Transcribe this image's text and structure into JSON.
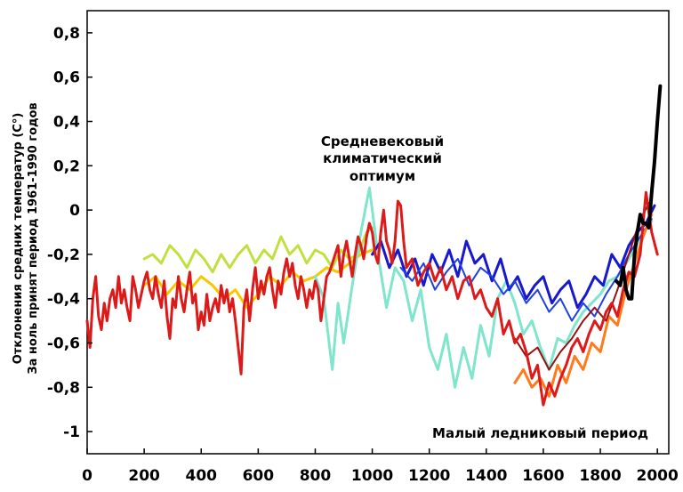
{
  "chart_data": {
    "type": "line",
    "title": "",
    "ylabel_line1": "Отклонения средних температур (C°)",
    "ylabel_line2": "За ноль принят период 1961-1990 годов",
    "xlabel": "",
    "xlim": [
      0,
      2040
    ],
    "ylim": [
      -1.1,
      0.9
    ],
    "x_ticks": [
      0,
      200,
      400,
      600,
      800,
      1000,
      1200,
      1400,
      1600,
      1800,
      2000
    ],
    "x_tick_labels": [
      "0",
      "200",
      "400",
      "600",
      "800",
      "1000",
      "1200",
      "1400",
      "1600",
      "1800",
      "2000"
    ],
    "y_ticks": [
      0.8,
      0.6,
      0.4,
      0.2,
      0,
      -0.2,
      -0.4,
      -0.6,
      -0.8,
      -1
    ],
    "y_tick_labels": [
      "0,8",
      "0,6",
      "0,4",
      "0,2",
      "0",
      "-0,2",
      "-0,4",
      "-0,6",
      "-0,8",
      "-1"
    ],
    "grid": false,
    "annotations": {
      "medieval_line1": "Средневековый",
      "medieval_line2": "климатический",
      "medieval_line3": "оптимум",
      "little_ice_age": "Малый ледниковый период"
    },
    "series": [
      {
        "color": "#c0e040",
        "width": 3,
        "x": [
          200,
          230,
          260,
          290,
          320,
          350,
          380,
          410,
          440,
          470,
          500,
          530,
          560,
          590,
          620,
          650,
          680,
          710,
          740,
          770,
          800,
          830,
          860,
          890,
          920,
          950,
          980,
          1000
        ],
        "y": [
          -0.22,
          -0.2,
          -0.24,
          -0.16,
          -0.2,
          -0.26,
          -0.18,
          -0.22,
          -0.28,
          -0.2,
          -0.26,
          -0.2,
          -0.16,
          -0.24,
          -0.18,
          -0.22,
          -0.12,
          -0.2,
          -0.16,
          -0.24,
          -0.18,
          -0.2,
          -0.26,
          -0.18,
          -0.22,
          -0.2,
          -0.1,
          -0.08
        ]
      },
      {
        "color": "#f5c800",
        "width": 3,
        "x": [
          200,
          240,
          280,
          320,
          360,
          400,
          440,
          480,
          520,
          560,
          600,
          640,
          680,
          720,
          760,
          800,
          840,
          880,
          920,
          960,
          1000
        ],
        "y": [
          -0.34,
          -0.3,
          -0.38,
          -0.32,
          -0.36,
          -0.3,
          -0.34,
          -0.4,
          -0.36,
          -0.44,
          -0.38,
          -0.3,
          -0.34,
          -0.28,
          -0.32,
          -0.3,
          -0.26,
          -0.28,
          -0.24,
          -0.2,
          -0.18
        ]
      },
      {
        "color": "#7fe5cc",
        "width": 3,
        "x": [
          800,
          830,
          860,
          880,
          900,
          930,
          960,
          990,
          1020,
          1050,
          1080,
          1110,
          1140,
          1170,
          1200,
          1230,
          1260,
          1290,
          1320,
          1350,
          1380,
          1410,
          1440,
          1470,
          1500,
          1530,
          1560,
          1590,
          1620,
          1650,
          1680,
          1710,
          1740,
          1770,
          1800,
          1830,
          1860,
          1890,
          1920,
          1950,
          1980
        ],
        "y": [
          -0.3,
          -0.4,
          -0.72,
          -0.42,
          -0.6,
          -0.34,
          -0.1,
          0.1,
          -0.2,
          -0.44,
          -0.26,
          -0.32,
          -0.5,
          -0.36,
          -0.62,
          -0.72,
          -0.56,
          -0.8,
          -0.62,
          -0.76,
          -0.52,
          -0.66,
          -0.4,
          -0.32,
          -0.42,
          -0.56,
          -0.5,
          -0.62,
          -0.72,
          -0.58,
          -0.6,
          -0.52,
          -0.46,
          -0.42,
          -0.38,
          -0.32,
          -0.3,
          -0.24,
          -0.18,
          -0.1,
          -0.05
        ]
      },
      {
        "color": "#1818cc",
        "width": 3,
        "x": [
          1000,
          1030,
          1060,
          1090,
          1120,
          1150,
          1180,
          1210,
          1240,
          1270,
          1300,
          1330,
          1360,
          1390,
          1420,
          1450,
          1480,
          1510,
          1540,
          1570,
          1600,
          1630,
          1660,
          1690,
          1720,
          1750,
          1780,
          1810,
          1840,
          1870,
          1900,
          1930,
          1960,
          1990
        ],
        "y": [
          -0.2,
          -0.14,
          -0.26,
          -0.18,
          -0.3,
          -0.22,
          -0.34,
          -0.2,
          -0.28,
          -0.18,
          -0.3,
          -0.14,
          -0.24,
          -0.2,
          -0.32,
          -0.22,
          -0.36,
          -0.3,
          -0.4,
          -0.34,
          -0.3,
          -0.42,
          -0.36,
          -0.32,
          -0.44,
          -0.38,
          -0.3,
          -0.34,
          -0.2,
          -0.26,
          -0.16,
          -0.1,
          -0.06,
          0.02
        ]
      },
      {
        "color": "#2040e0",
        "width": 2,
        "x": [
          1100,
          1140,
          1180,
          1220,
          1260,
          1300,
          1340,
          1380,
          1420,
          1460,
          1500,
          1540,
          1580,
          1620,
          1660,
          1700,
          1740,
          1780,
          1820,
          1860,
          1900,
          1940,
          1980
        ],
        "y": [
          -0.26,
          -0.32,
          -0.24,
          -0.36,
          -0.28,
          -0.22,
          -0.34,
          -0.26,
          -0.3,
          -0.38,
          -0.32,
          -0.42,
          -0.36,
          -0.46,
          -0.4,
          -0.5,
          -0.42,
          -0.48,
          -0.38,
          -0.3,
          -0.2,
          -0.12,
          -0.04
        ]
      },
      {
        "color": "#ff7a1a",
        "width": 3,
        "x": [
          1500,
          1530,
          1560,
          1590,
          1620,
          1650,
          1680,
          1710,
          1740,
          1770,
          1800,
          1830,
          1860,
          1890,
          1920,
          1950,
          1980
        ],
        "y": [
          -0.78,
          -0.72,
          -0.8,
          -0.76,
          -0.84,
          -0.7,
          -0.78,
          -0.66,
          -0.72,
          -0.6,
          -0.64,
          -0.48,
          -0.52,
          -0.36,
          -0.24,
          -0.12,
          -0.02
        ]
      },
      {
        "color": "#9a1010",
        "width": 2,
        "x": [
          1500,
          1540,
          1580,
          1620,
          1660,
          1700,
          1740,
          1780,
          1820,
          1860,
          1900,
          1940,
          1980
        ],
        "y": [
          -0.58,
          -0.66,
          -0.62,
          -0.72,
          -0.64,
          -0.58,
          -0.5,
          -0.44,
          -0.5,
          -0.36,
          -0.2,
          -0.04,
          0.05
        ]
      },
      {
        "color": "#dd1a1a",
        "width": 3,
        "x": [
          0,
          10,
          20,
          30,
          40,
          50,
          60,
          70,
          80,
          90,
          100,
          110,
          120,
          130,
          140,
          150,
          160,
          170,
          180,
          190,
          200,
          210,
          220,
          230,
          240,
          250,
          260,
          270,
          280,
          290,
          300,
          310,
          320,
          330,
          340,
          350,
          360,
          370,
          380,
          390,
          400,
          410,
          420,
          430,
          440,
          450,
          460,
          470,
          480,
          490,
          500,
          510,
          520,
          530,
          540,
          550,
          560,
          570,
          580,
          590,
          600,
          610,
          620,
          630,
          640,
          650,
          660,
          670,
          680,
          690,
          700,
          710,
          720,
          730,
          740,
          750,
          760,
          770,
          780,
          790,
          800,
          810,
          820,
          830,
          840,
          850,
          860,
          870,
          880,
          890,
          900,
          910,
          920,
          930,
          940,
          950,
          960,
          970,
          980,
          990,
          1000,
          1010,
          1020,
          1030,
          1040,
          1050,
          1060,
          1070,
          1080,
          1090,
          1100,
          1110,
          1120,
          1140,
          1160,
          1180,
          1200,
          1220,
          1240,
          1260,
          1280,
          1300,
          1320,
          1340,
          1360,
          1380,
          1400,
          1420,
          1440,
          1460,
          1480,
          1500,
          1520,
          1540,
          1560,
          1580,
          1600,
          1620,
          1640,
          1660,
          1680,
          1700,
          1720,
          1740,
          1760,
          1780,
          1800,
          1820,
          1840,
          1860,
          1880,
          1900,
          1920,
          1940,
          1960,
          1980,
          2000
        ],
        "y": [
          -0.5,
          -0.62,
          -0.4,
          -0.3,
          -0.48,
          -0.54,
          -0.42,
          -0.5,
          -0.4,
          -0.36,
          -0.44,
          -0.3,
          -0.42,
          -0.36,
          -0.44,
          -0.5,
          -0.3,
          -0.36,
          -0.44,
          -0.38,
          -0.32,
          -0.28,
          -0.36,
          -0.4,
          -0.3,
          -0.38,
          -0.44,
          -0.32,
          -0.48,
          -0.58,
          -0.4,
          -0.44,
          -0.3,
          -0.4,
          -0.46,
          -0.36,
          -0.28,
          -0.42,
          -0.38,
          -0.54,
          -0.46,
          -0.52,
          -0.38,
          -0.5,
          -0.44,
          -0.4,
          -0.46,
          -0.34,
          -0.42,
          -0.36,
          -0.46,
          -0.4,
          -0.5,
          -0.62,
          -0.74,
          -0.44,
          -0.36,
          -0.5,
          -0.36,
          -0.26,
          -0.4,
          -0.32,
          -0.38,
          -0.3,
          -0.26,
          -0.36,
          -0.44,
          -0.32,
          -0.38,
          -0.28,
          -0.22,
          -0.3,
          -0.24,
          -0.34,
          -0.4,
          -0.3,
          -0.36,
          -0.44,
          -0.36,
          -0.4,
          -0.32,
          -0.36,
          -0.5,
          -0.4,
          -0.3,
          -0.28,
          -0.24,
          -0.2,
          -0.16,
          -0.3,
          -0.2,
          -0.14,
          -0.22,
          -0.3,
          -0.2,
          -0.12,
          -0.16,
          -0.22,
          -0.12,
          -0.06,
          -0.1,
          -0.2,
          -0.24,
          -0.1,
          0.0,
          -0.14,
          -0.18,
          -0.24,
          -0.14,
          0.04,
          0.02,
          -0.14,
          -0.26,
          -0.22,
          -0.34,
          -0.28,
          -0.24,
          -0.32,
          -0.26,
          -0.36,
          -0.3,
          -0.4,
          -0.32,
          -0.3,
          -0.4,
          -0.36,
          -0.44,
          -0.48,
          -0.4,
          -0.56,
          -0.5,
          -0.6,
          -0.56,
          -0.64,
          -0.76,
          -0.7,
          -0.88,
          -0.78,
          -0.84,
          -0.76,
          -0.7,
          -0.62,
          -0.58,
          -0.64,
          -0.56,
          -0.5,
          -0.54,
          -0.46,
          -0.42,
          -0.48,
          -0.36,
          -0.28,
          -0.3,
          -0.2,
          0.08,
          -0.1,
          -0.2
        ]
      },
      {
        "color": "#000000",
        "width": 4,
        "x": [
          1856,
          1870,
          1880,
          1890,
          1900,
          1910,
          1920,
          1930,
          1940,
          1950,
          1960,
          1970,
          1980,
          1990,
          2000,
          2010
        ],
        "y": [
          -0.32,
          -0.34,
          -0.26,
          -0.36,
          -0.4,
          -0.4,
          -0.2,
          -0.1,
          -0.02,
          -0.06,
          -0.06,
          -0.08,
          0.08,
          0.22,
          0.4,
          0.56
        ]
      }
    ]
  }
}
